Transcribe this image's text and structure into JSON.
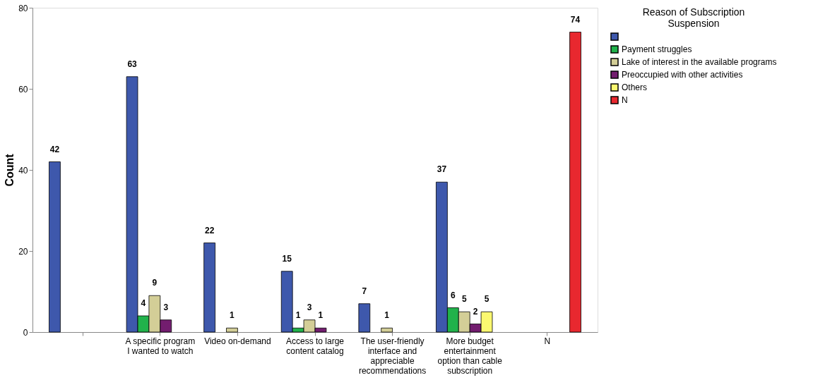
{
  "chart_data": {
    "type": "bar",
    "ylabel": "Count",
    "legend_title": "Reason of Subscription Suspension",
    "categories": [
      null,
      "A specific program I wanted to watch",
      "Video on-demand",
      "Access to large content catalog",
      "The user-friendly interface and appreciable recommendations",
      "More budget entertainment option than cable subscription",
      "N"
    ],
    "series": [
      {
        "color": "#3e58ac",
        "values": [
          42,
          63,
          22,
          15,
          7,
          37,
          null
        ]
      },
      {
        "name": "Payment struggles",
        "color": "#21b24b",
        "values": [
          null,
          4,
          null,
          1,
          null,
          6,
          null
        ]
      },
      {
        "name": "Lake of interest in the available programs",
        "color": "#d3ce97",
        "values": [
          null,
          9,
          1,
          3,
          1,
          5,
          null
        ]
      },
      {
        "name": "Preoccupied with other activities",
        "color": "#731d6f",
        "values": [
          null,
          3,
          null,
          1,
          null,
          2,
          null
        ]
      },
      {
        "name": "Others",
        "color": "#fbf870",
        "values": [
          null,
          null,
          null,
          null,
          null,
          5,
          null
        ]
      },
      {
        "name": "N",
        "color": "#e8282f",
        "values": [
          null,
          null,
          null,
          null,
          null,
          null,
          74
        ]
      }
    ],
    "ylim": [
      0,
      80
    ],
    "yticks": [
      0,
      20,
      40,
      60,
      80
    ],
    "grid": false,
    "legend": "right",
    "data_labels": true
  }
}
